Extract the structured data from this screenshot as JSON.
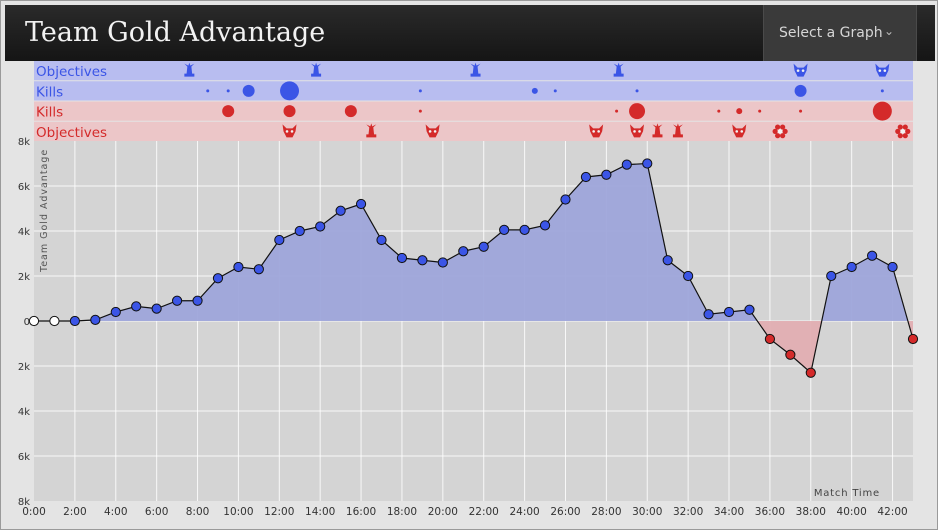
{
  "header": {
    "title": "Team Gold Advantage",
    "select_label": "Select a Graph"
  },
  "colors": {
    "blue": "#3b55e6",
    "red": "#d42a2a",
    "blue_fill": "#9ea5da",
    "red_fill": "#e1aeb2",
    "blue_band": "#b8bdf0",
    "red_band": "#ecc6c8"
  },
  "lanes": [
    {
      "label": "Objectives",
      "team": "blue",
      "kind": "objectives"
    },
    {
      "label": "Kills",
      "team": "blue",
      "kind": "kills"
    },
    {
      "label": "Kills",
      "team": "red",
      "kind": "kills"
    },
    {
      "label": "Objectives",
      "team": "red",
      "kind": "objectives"
    }
  ],
  "lane_events": {
    "blue_objectives": [
      {
        "t": 7.6,
        "icon": "tower-icon"
      },
      {
        "t": 13.8,
        "icon": "tower-icon"
      },
      {
        "t": 21.6,
        "icon": "tower-icon"
      },
      {
        "t": 28.6,
        "icon": "tower-icon"
      },
      {
        "t": 37.5,
        "icon": "baron-icon"
      },
      {
        "t": 41.5,
        "icon": "baron-icon"
      }
    ],
    "blue_kills": [
      {
        "t": 8.5,
        "size": 1
      },
      {
        "t": 9.5,
        "size": 1
      },
      {
        "t": 10.5,
        "size": 3
      },
      {
        "t": 12.5,
        "size": 5
      },
      {
        "t": 18.9,
        "size": 1
      },
      {
        "t": 24.5,
        "size": 2
      },
      {
        "t": 25.5,
        "size": 1
      },
      {
        "t": 29.5,
        "size": 1
      },
      {
        "t": 37.5,
        "size": 3
      },
      {
        "t": 41.5,
        "size": 1
      }
    ],
    "red_kills": [
      {
        "t": 9.5,
        "size": 3
      },
      {
        "t": 12.5,
        "size": 3
      },
      {
        "t": 15.5,
        "size": 3
      },
      {
        "t": 18.9,
        "size": 1
      },
      {
        "t": 28.5,
        "size": 1
      },
      {
        "t": 29.5,
        "size": 4
      },
      {
        "t": 33.5,
        "size": 1
      },
      {
        "t": 34.5,
        "size": 2
      },
      {
        "t": 35.5,
        "size": 1
      },
      {
        "t": 37.5,
        "size": 1
      },
      {
        "t": 41.5,
        "size": 5
      }
    ],
    "red_objectives": [
      {
        "t": 12.5,
        "icon": "dragon-icon"
      },
      {
        "t": 16.5,
        "icon": "tower-icon"
      },
      {
        "t": 19.5,
        "icon": "dragon-icon"
      },
      {
        "t": 27.5,
        "icon": "dragon-icon"
      },
      {
        "t": 29.5,
        "icon": "baron-icon"
      },
      {
        "t": 30.5,
        "icon": "tower-icon"
      },
      {
        "t": 31.5,
        "icon": "tower-icon"
      },
      {
        "t": 34.5,
        "icon": "dragon-icon"
      },
      {
        "t": 36.5,
        "icon": "inhibitor-icon"
      },
      {
        "t": 42.5,
        "icon": "inhibitor-icon"
      }
    ]
  },
  "chart_data": {
    "type": "area",
    "ylabel": "Team Gold Advantage",
    "xlabel": "Match Time",
    "y_ticks": [
      "8k",
      "6k",
      "4k",
      "2k",
      "0",
      "2k",
      "4k",
      "6k",
      "8k"
    ],
    "x_ticks": [
      "0:00",
      "2:00",
      "4:00",
      "6:00",
      "8:00",
      "10:00",
      "12:00",
      "14:00",
      "16:00",
      "18:00",
      "20:00",
      "22:00",
      "24:00",
      "26:00",
      "28:00",
      "30:00",
      "32:00",
      "34:00",
      "36:00",
      "38:00",
      "40:00",
      "42:00"
    ],
    "ylim": [
      -8000,
      8000
    ],
    "xlim": [
      0,
      43
    ],
    "grid": true,
    "x_minutes": [
      0,
      1,
      2,
      3,
      4,
      5,
      6,
      7,
      8,
      9,
      10,
      11,
      12,
      13,
      14,
      15,
      16,
      17,
      18,
      19,
      20,
      21,
      22,
      23,
      24,
      25,
      26,
      27,
      28,
      29,
      30,
      31,
      32,
      33,
      34,
      35,
      36,
      37,
      38,
      39,
      40,
      41,
      42,
      43
    ],
    "values": [
      0,
      0,
      0,
      50,
      400,
      650,
      550,
      900,
      900,
      1900,
      2400,
      2300,
      3600,
      4000,
      4200,
      4900,
      5200,
      3600,
      2800,
      2700,
      2600,
      3100,
      3300,
      4050,
      4050,
      4250,
      5400,
      6400,
      6500,
      6950,
      7000,
      2700,
      2000,
      300,
      400,
      500,
      -800,
      -1500,
      -2300,
      2000,
      2400,
      2900,
      2400,
      -800
    ]
  }
}
